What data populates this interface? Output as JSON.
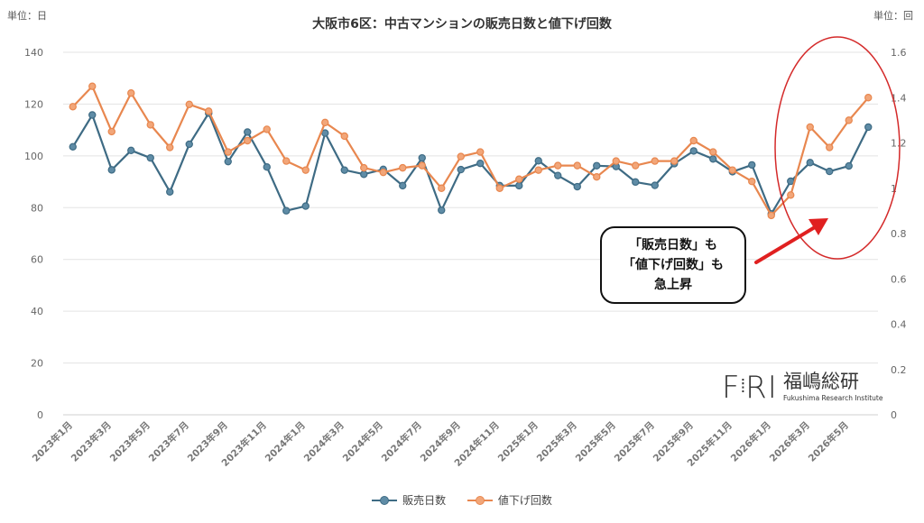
{
  "chart_data": {
    "type": "line",
    "title": "大阪市6区：中古マンションの販売日数と値下げ回数",
    "y_unit_label": "単位：日",
    "y2_unit_label": "単位：回",
    "ylim": [
      0,
      140
    ],
    "yticks": [
      0,
      20,
      40,
      60,
      80,
      100,
      120,
      140
    ],
    "y2lim": [
      0,
      1.6
    ],
    "y2ticks": [
      "0",
      "0.2",
      "0.4",
      "0.6",
      "0.8",
      "1",
      "1.2",
      "1.4",
      "1.6"
    ],
    "x": [
      "2023年1月",
      "2023年2月",
      "2023年3月",
      "2023年4月",
      "2023年5月",
      "2023年6月",
      "2023年7月",
      "2023年8月",
      "2023年9月",
      "2023年10月",
      "2023年11月",
      "2023年12月",
      "2024年1月",
      "2024年2月",
      "2024年3月",
      "2024年4月",
      "2024年5月",
      "2024年6月",
      "2024年7月",
      "2024年8月",
      "2024年9月",
      "2024年10月",
      "2024年11月",
      "2024年12月",
      "2025年1月",
      "2025年2月",
      "2025年3月",
      "2025年4月",
      "2025年5月",
      "2025年6月",
      "2025年7月",
      "2025年8月",
      "2025年9月",
      "2025年10月",
      "2025年11月",
      "2025年12月",
      "2026年1月",
      "2026年2月",
      "2026年3月",
      "2026年4月",
      "2026年5月",
      "2026年6月"
    ],
    "x_tick_labels": [
      "2023年1月",
      "2023年3月",
      "2023年5月",
      "2023年7月",
      "2023年9月",
      "2023年11月",
      "2024年1月",
      "2024年3月",
      "2024年5月",
      "2024年7月",
      "2024年9月",
      "2024年11月",
      "2025年1月",
      "2025年3月",
      "2025年5月",
      "2025年7月",
      "2025年9月",
      "2025年11月",
      "2026年1月",
      "2026年3月",
      "2026年5月"
    ],
    "series": [
      {
        "name": "販売日数",
        "axis": "left",
        "color": "#3e6b84",
        "fill": "#5f8ca6",
        "values": [
          103.5,
          115.8,
          94.6,
          102.1,
          99.2,
          86.1,
          104.5,
          116.5,
          97.8,
          109.2,
          95.7,
          78.8,
          80.6,
          108.8,
          94.5,
          92.9,
          94.8,
          88.5,
          99.2,
          79.0,
          94.7,
          97.1,
          88.5,
          88.5,
          98.1,
          92.4,
          88.1,
          96.2,
          95.9,
          89.9,
          88.6,
          97.0,
          101.9,
          98.8,
          93.9,
          96.5,
          77.6,
          90.2,
          97.4,
          94.0,
          96.1,
          111.1
        ]
      },
      {
        "name": "値下げ回数",
        "axis": "right",
        "color": "#e8874f",
        "fill": "#f2a679",
        "values": [
          1.36,
          1.45,
          1.25,
          1.42,
          1.28,
          1.18,
          1.37,
          1.34,
          1.16,
          1.21,
          1.26,
          1.12,
          1.08,
          1.29,
          1.23,
          1.09,
          1.07,
          1.09,
          1.1,
          1.0,
          1.14,
          1.16,
          1.0,
          1.04,
          1.08,
          1.1,
          1.1,
          1.05,
          1.12,
          1.1,
          1.12,
          1.12,
          1.21,
          1.16,
          1.08,
          1.03,
          0.88,
          0.97,
          1.27,
          1.18,
          1.3,
          1.4
        ]
      }
    ],
    "legend_position": "bottom",
    "grid": true,
    "highlight_ellipse_color": "#d42a2a",
    "arrow_color": "#e02020"
  },
  "callout": {
    "line1": "「販売日数」も",
    "line2": "「値下げ回数」も",
    "line3": "急上昇"
  },
  "logo": {
    "mark": "FRI",
    "name": "福嶋総研",
    "subtitle": "Fukushima Research Institute"
  }
}
